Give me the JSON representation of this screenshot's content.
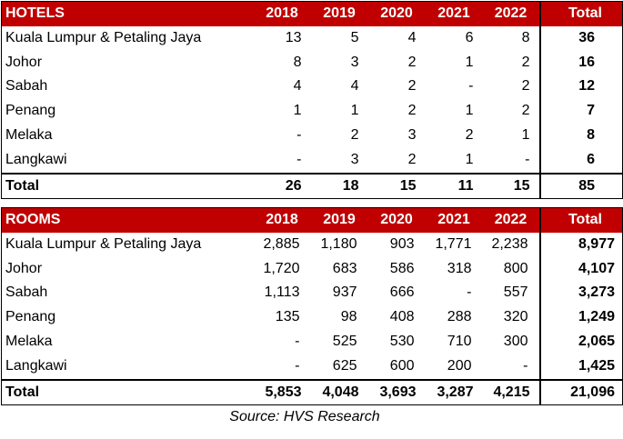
{
  "hotels": {
    "header": {
      "label": "HOTELS",
      "years": [
        "2018",
        "2019",
        "2020",
        "2021",
        "2022"
      ],
      "total": "Total"
    },
    "rows": [
      {
        "name": "Kuala Lumpur & Petaling Jaya",
        "values": [
          "13",
          "5",
          "4",
          "6",
          "8"
        ],
        "total": "36"
      },
      {
        "name": "Johor",
        "values": [
          "8",
          "3",
          "2",
          "1",
          "2"
        ],
        "total": "16"
      },
      {
        "name": "Sabah",
        "values": [
          "4",
          "4",
          "2",
          "-",
          "2"
        ],
        "total": "12"
      },
      {
        "name": "Penang",
        "values": [
          "1",
          "1",
          "2",
          "1",
          "2"
        ],
        "total": "7"
      },
      {
        "name": "Melaka",
        "values": [
          "-",
          "2",
          "3",
          "2",
          "1"
        ],
        "total": "8"
      },
      {
        "name": "Langkawi",
        "values": [
          "-",
          "3",
          "2",
          "1",
          "-"
        ],
        "total": "6"
      }
    ],
    "footer": {
      "label": "Total",
      "values": [
        "26",
        "18",
        "15",
        "11",
        "15"
      ],
      "total": "85"
    }
  },
  "rooms": {
    "header": {
      "label": "ROOMS",
      "years": [
        "2018",
        "2019",
        "2020",
        "2021",
        "2022"
      ],
      "total": "Total"
    },
    "rows": [
      {
        "name": "Kuala Lumpur & Petaling Jaya",
        "values": [
          "2,885",
          "1,180",
          "903",
          "1,771",
          "2,238"
        ],
        "total": "8,977"
      },
      {
        "name": "Johor",
        "values": [
          "1,720",
          "683",
          "586",
          "318",
          "800"
        ],
        "total": "4,107"
      },
      {
        "name": "Sabah",
        "values": [
          "1,113",
          "937",
          "666",
          "-",
          "557"
        ],
        "total": "3,273"
      },
      {
        "name": "Penang",
        "values": [
          "135",
          "98",
          "408",
          "288",
          "320"
        ],
        "total": "1,249"
      },
      {
        "name": "Melaka",
        "values": [
          "-",
          "525",
          "530",
          "710",
          "300"
        ],
        "total": "2,065"
      },
      {
        "name": "Langkawi",
        "values": [
          "-",
          "625",
          "600",
          "200",
          "-"
        ],
        "total": "1,425"
      }
    ],
    "footer": {
      "label": "Total",
      "values": [
        "5,853",
        "4,048",
        "3,693",
        "3,287",
        "4,215"
      ],
      "total": "21,096"
    }
  },
  "source": "Source: HVS Research",
  "colors": {
    "header_bg": "#c00000",
    "header_text": "#ffffff"
  }
}
